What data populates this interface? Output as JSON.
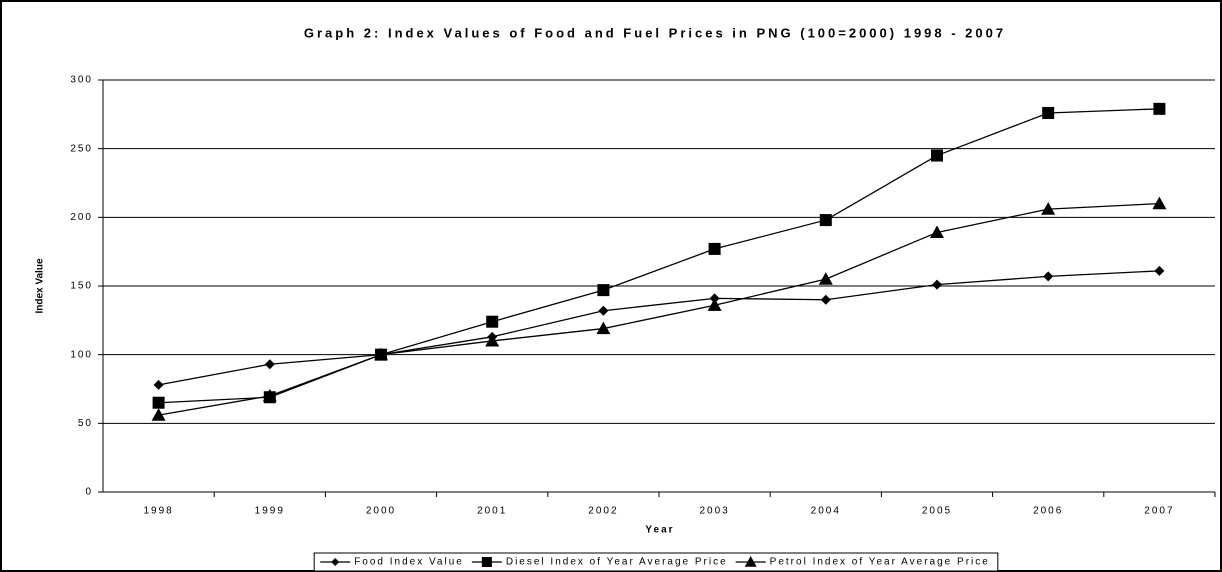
{
  "chart_data": {
    "type": "line",
    "title": "Graph 2: Index Values of Food and Fuel Prices in PNG (100=2000) 1998 - 2007",
    "x_label": "Year",
    "y_label": "Index Value",
    "categories": [
      "1998",
      "1999",
      "2000",
      "2001",
      "2002",
      "2003",
      "2004",
      "2005",
      "2006",
      "2007"
    ],
    "series": [
      {
        "name": "Food Index Value",
        "color": "#000000",
        "marker": "diamond",
        "values": [
          78,
          93,
          100,
          113,
          132,
          141,
          140,
          151,
          157,
          161
        ]
      },
      {
        "name": "Diesel Index of Year Average Price",
        "color": "#000000",
        "marker": "square",
        "values": [
          65,
          69,
          100,
          124,
          147,
          177,
          198,
          245,
          276,
          279
        ]
      },
      {
        "name": "Petrol Index of Year Average Price",
        "color": "#000000",
        "marker": "triangle",
        "values": [
          56,
          70,
          100,
          110,
          119,
          136,
          155,
          189,
          206,
          210
        ]
      }
    ],
    "ylim": [
      0,
      300
    ],
    "yticks": [
      0,
      50,
      100,
      150,
      200,
      250,
      300
    ],
    "grid": true,
    "legend": "bottom"
  }
}
